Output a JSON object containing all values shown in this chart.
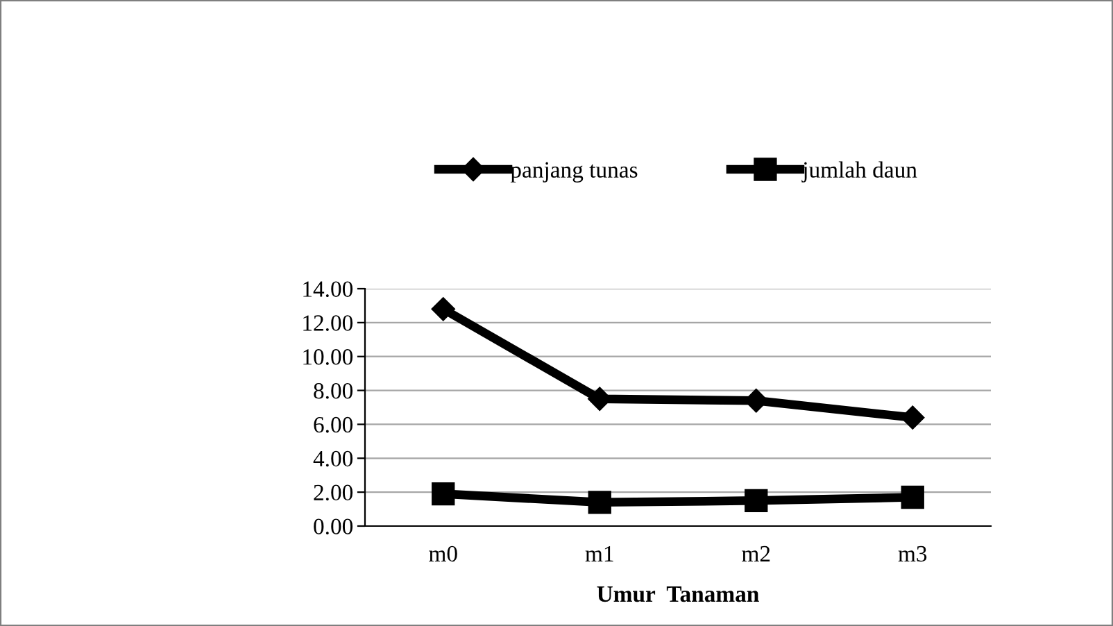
{
  "chart_data": {
    "type": "line",
    "xlabel": "Umur  Tanaman",
    "categories": [
      "m0",
      "m1",
      "m2",
      "m3"
    ],
    "series": [
      {
        "name": "panjang tunas",
        "color": "#000000",
        "marker": "diamond",
        "values": [
          12.8,
          7.5,
          7.4,
          6.4
        ]
      },
      {
        "name": "jumlah daun",
        "color": "#000000",
        "marker": "square",
        "values": [
          1.9,
          1.4,
          1.5,
          1.7
        ]
      }
    ],
    "ylim": [
      0,
      14
    ],
    "yticks": [
      {
        "value": 0,
        "label": "0.00"
      },
      {
        "value": 2,
        "label": "2.00"
      },
      {
        "value": 4,
        "label": "4.00"
      },
      {
        "value": 6,
        "label": "6.00"
      },
      {
        "value": 8,
        "label": "8.00"
      },
      {
        "value": 10,
        "label": "10.00"
      },
      {
        "value": 12,
        "label": "12.00"
      },
      {
        "value": 14,
        "label": "14.00"
      }
    ],
    "grid": "y",
    "legend": "top",
    "line_style": "solid"
  }
}
